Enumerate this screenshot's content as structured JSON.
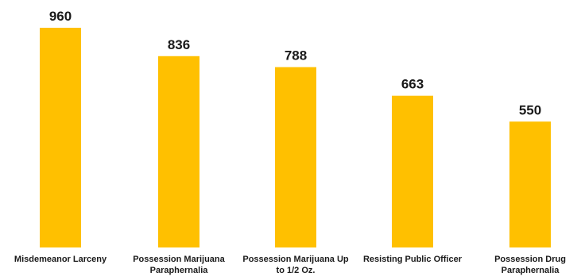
{
  "chart_data": {
    "type": "bar",
    "categories": [
      [
        "Misdemeanor Larceny"
      ],
      [
        "Possession Marijuana",
        "Paraphernalia"
      ],
      [
        "Possession Marijuana Up",
        "to 1/2 Oz."
      ],
      [
        "Resisting Public Officer"
      ],
      [
        "Possession Drug",
        "Paraphernalia"
      ]
    ],
    "values": [
      960,
      836,
      788,
      663,
      550
    ],
    "ylim": [
      0,
      960
    ],
    "grid": false,
    "legend": "none",
    "colors": {
      "bar": "#FFC000",
      "text": "#1a1a1a"
    }
  }
}
